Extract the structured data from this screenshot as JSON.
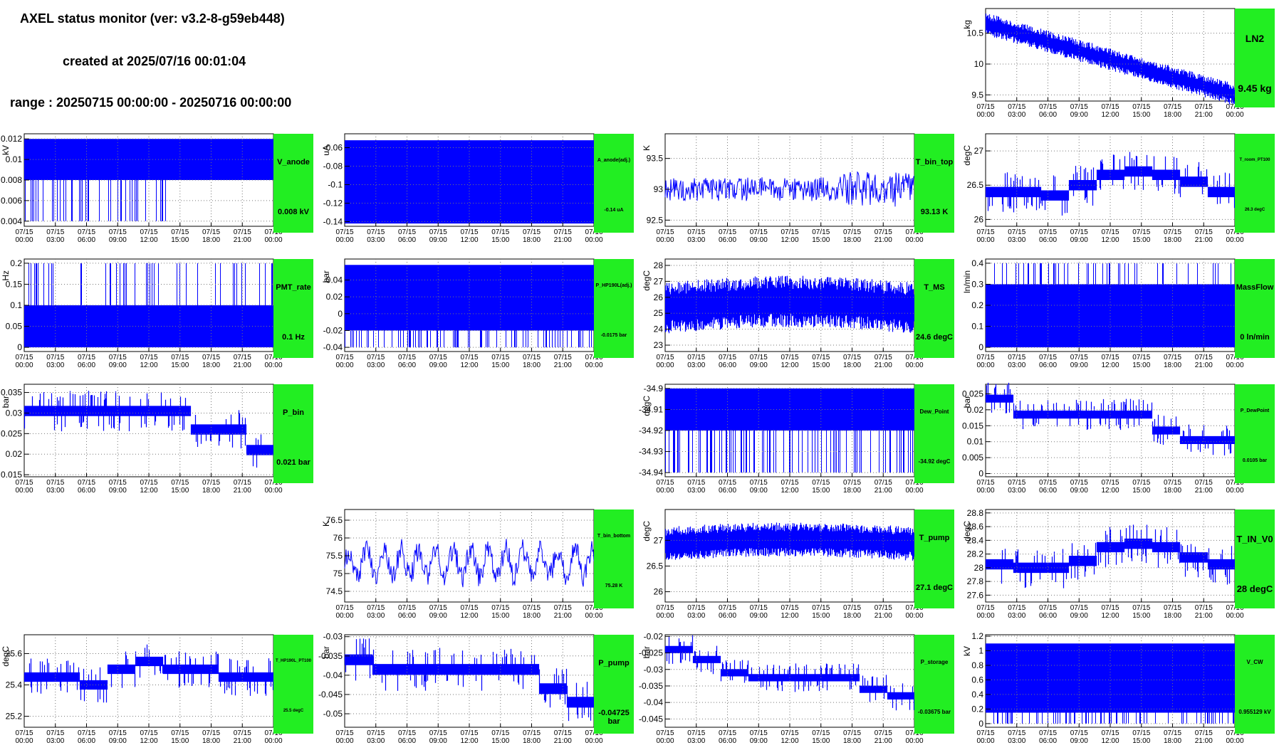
{
  "header": {
    "title": "AXEL status monitor (ver: v3.2-8-g59eb448)",
    "created": "created at 2025/07/16 00:01:04",
    "range": "range : 20250715 00:00:00 - 20250716 00:00:00"
  },
  "colors": {
    "trace": "#0000ff",
    "status_ok": "#22ee22",
    "grid": "#999999"
  },
  "x_ticks": [
    [
      "07/15",
      "00:00"
    ],
    [
      "07/15",
      "03:00"
    ],
    [
      "07/15",
      "06:00"
    ],
    [
      "07/15",
      "09:00"
    ],
    [
      "07/15",
      "12:00"
    ],
    [
      "07/15",
      "15:00"
    ],
    [
      "07/15",
      "18:00"
    ],
    [
      "07/15",
      "21:00"
    ],
    [
      "07/16",
      "00:00"
    ]
  ],
  "chart_data": [
    {
      "id": "LN2",
      "type": "line",
      "name": "LN2",
      "value": "9.45 kg",
      "ylabel": "kg",
      "ylim": [
        9.4,
        10.9
      ],
      "yticks": [
        "9.5",
        "10",
        "10.5"
      ],
      "ytick_values": [
        9.5,
        10,
        10.5
      ],
      "style": "trend",
      "series_start": 10.65,
      "series_end": 9.5,
      "band": 0.18,
      "name_size": 14,
      "value_size": 14
    },
    {
      "id": "V_anode",
      "type": "line",
      "name": "V_anode",
      "value": "0.008 kV",
      "ylabel": "kV",
      "ylim": [
        0.0035,
        0.0125
      ],
      "yticks": [
        "0.004",
        "0.006",
        "0.008",
        "0.01",
        "0.012"
      ],
      "ytick_values": [
        0.004,
        0.006,
        0.008,
        0.01,
        0.012
      ],
      "style": "block",
      "block_low": 0.008,
      "block_high": 0.012,
      "dips_to": 0.004,
      "dip_until": 0.57,
      "name_size": 11,
      "value_size": 11
    },
    {
      "id": "A_anode",
      "type": "line",
      "name": "A_anode(adj.)",
      "value": "-0.14 uA",
      "ylabel": "uA",
      "ylim": [
        -0.145,
        -0.045
      ],
      "yticks": [
        "-0.14",
        "-0.12",
        "-0.1",
        "-0.08",
        "-0.06"
      ],
      "ytick_values": [
        -0.14,
        -0.12,
        -0.1,
        -0.08,
        -0.06
      ],
      "style": "solid",
      "block_low": -0.142,
      "block_high": -0.052,
      "name_size": 7,
      "value_size": 7
    },
    {
      "id": "T_bin_top",
      "type": "line",
      "name": "T_bin_top",
      "value": "93.13 K",
      "ylabel": "K",
      "ylim": [
        92.4,
        93.9
      ],
      "yticks": [
        "92.5",
        "93",
        "93.5"
      ],
      "ytick_values": [
        92.5,
        93,
        93.5
      ],
      "style": "noisy",
      "center": 93.0,
      "amp": 0.3,
      "name_size": 11,
      "value_size": 11
    },
    {
      "id": "T_room",
      "type": "line",
      "name": "T_room_PT100",
      "value": "26.3 degC",
      "ylabel": "degC",
      "ylim": [
        25.9,
        27.25
      ],
      "yticks": [
        "26",
        "26.5",
        "27"
      ],
      "ytick_values": [
        26,
        26.5,
        27
      ],
      "style": "steps",
      "levels": [
        26.4,
        26.4,
        26.35,
        26.5,
        26.65,
        26.7,
        26.65,
        26.55,
        26.4
      ],
      "amp": 0.15,
      "name_size": 6,
      "value_size": 6
    },
    {
      "id": "PMT_rate",
      "type": "line",
      "name": "PMT_rate",
      "value": "0.1 Hz",
      "ylabel": "Hz",
      "ylim": [
        -0.01,
        0.21
      ],
      "yticks": [
        "0",
        "0.05",
        "0.1",
        "0.15",
        "0.2"
      ],
      "ytick_values": [
        0,
        0.05,
        0.1,
        0.15,
        0.2
      ],
      "style": "block",
      "block_low": 0.0,
      "block_high": 0.1,
      "spikes_to": 0.2,
      "name_size": 11,
      "value_size": 11
    },
    {
      "id": "P_HP190L",
      "type": "line",
      "name": "P_HP190L(adj.)",
      "value": "-0.0175 bar",
      "ylabel": "bar",
      "ylim": [
        -0.045,
        0.065
      ],
      "yticks": [
        "-0.04",
        "-0.02",
        "0",
        "0.02",
        "0.04"
      ],
      "ytick_values": [
        -0.04,
        -0.02,
        0,
        0.02,
        0.04
      ],
      "style": "block",
      "block_low": -0.02,
      "block_high": 0.058,
      "dips_to": -0.04,
      "name_size": 7,
      "value_size": 7
    },
    {
      "id": "T_MS",
      "type": "line",
      "name": "T_MS",
      "value": "24.6 degC",
      "ylabel": "degC",
      "ylim": [
        22.6,
        28.4
      ],
      "yticks": [
        "23",
        "24",
        "25",
        "26",
        "27",
        "28"
      ],
      "ytick_values": [
        23,
        24,
        25,
        26,
        27,
        28
      ],
      "style": "dense",
      "center": 25.4,
      "amp": 1.7,
      "name_size": 11,
      "value_size": 11
    },
    {
      "id": "MassFlow",
      "type": "line",
      "name": "MassFlow",
      "value": "0 ln/min",
      "ylabel": "ln/min",
      "ylim": [
        -0.02,
        0.42
      ],
      "yticks": [
        "0",
        "0.1",
        "0.2",
        "0.3",
        "0.4"
      ],
      "ytick_values": [
        0,
        0.1,
        0.2,
        0.3,
        0.4
      ],
      "style": "block",
      "block_low": 0.0,
      "block_high": 0.3,
      "spikes_to": 0.4,
      "name_size": 11,
      "value_size": 11
    },
    {
      "id": "P_bin",
      "type": "line",
      "name": "P_bin",
      "value": "0.021 bar",
      "ylabel": "bar",
      "ylim": [
        0.0145,
        0.037
      ],
      "yticks": [
        "0.015",
        "0.02",
        "0.025",
        "0.03",
        "0.035"
      ],
      "ytick_values": [
        0.015,
        0.02,
        0.025,
        0.03,
        0.035
      ],
      "style": "stepdown",
      "levels": [
        0.0305,
        0.0305,
        0.0305,
        0.0305,
        0.0305,
        0.0305,
        0.026,
        0.026,
        0.021
      ],
      "amp": 0.0025,
      "name_size": 11,
      "value_size": 11
    },
    {
      "id": "Dew_Point",
      "type": "line",
      "name": "Dew_Point",
      "value": "-34.92 degC",
      "ylabel": "degC",
      "ylim": [
        -34.942,
        -34.898
      ],
      "yticks": [
        "-34.94",
        "-34.93",
        "-34.92",
        "-34.91",
        "-34.9"
      ],
      "ytick_values": [
        -34.94,
        -34.93,
        -34.92,
        -34.91,
        -34.9
      ],
      "style": "block",
      "block_low": -34.92,
      "block_high": -34.9,
      "dips_to": -34.94,
      "name_size": 8,
      "value_size": 8
    },
    {
      "id": "P_DewPoint",
      "type": "line",
      "name": "P_DewPoint",
      "value": "0.0105 bar",
      "ylabel": "bar",
      "ylim": [
        -0.001,
        0.028
      ],
      "yticks": [
        "0",
        "0.005",
        "0.01",
        "0.015",
        "0.02",
        "0.025"
      ],
      "ytick_values": [
        0,
        0.005,
        0.01,
        0.015,
        0.02,
        0.025
      ],
      "style": "stepdown",
      "levels": [
        0.0235,
        0.0185,
        0.0185,
        0.0185,
        0.0185,
        0.0185,
        0.0135,
        0.0105,
        0.0105
      ],
      "amp": 0.0025,
      "name_size": 7,
      "value_size": 7
    },
    {
      "id": "T_bin_bottom",
      "type": "line",
      "name": "T_bin_bottom",
      "value": "75.28 K",
      "ylabel": "K",
      "ylim": [
        74.2,
        76.8
      ],
      "yticks": [
        "74.5",
        "75",
        "75.5",
        "76",
        "76.5"
      ],
      "ytick_values": [
        74.5,
        75,
        75.5,
        76,
        76.5
      ],
      "style": "oscillate",
      "center": 75.3,
      "amp": 0.7,
      "name_size": 7,
      "value_size": 7
    },
    {
      "id": "T_pump",
      "type": "line",
      "name": "T_pump",
      "value": "27.1 degC",
      "ylabel": "degC",
      "ylim": [
        25.8,
        27.6
      ],
      "yticks": [
        "26",
        "26.5",
        "27"
      ],
      "ytick_values": [
        26,
        26.5,
        27
      ],
      "style": "dense",
      "center": 26.95,
      "amp": 0.35,
      "name_size": 11,
      "value_size": 11
    },
    {
      "id": "T_IN_V0",
      "type": "line",
      "name": "T_IN_V0",
      "value": "28 degC",
      "ylabel": "degC",
      "ylim": [
        27.5,
        28.85
      ],
      "yticks": [
        "27.6",
        "27.8",
        "28",
        "28.2",
        "28.4",
        "28.6",
        "28.8"
      ],
      "ytick_values": [
        27.6,
        27.8,
        28,
        28.2,
        28.4,
        28.6,
        28.8
      ],
      "style": "steps",
      "levels": [
        28.05,
        28.0,
        28.0,
        28.1,
        28.3,
        28.35,
        28.3,
        28.15,
        28.05
      ],
      "amp": 0.15,
      "name_size": 13,
      "value_size": 13
    },
    {
      "id": "T_HP190L",
      "type": "line",
      "name": "T_HP190L_PT100",
      "value": "25.5 degC",
      "ylabel": "degC",
      "ylim": [
        25.13,
        25.72
      ],
      "yticks": [
        "25.2",
        "25.4",
        "25.6"
      ],
      "ytick_values": [
        25.2,
        25.4,
        25.6
      ],
      "style": "steps",
      "levels": [
        25.45,
        25.45,
        25.4,
        25.5,
        25.55,
        25.5,
        25.5,
        25.45,
        25.45
      ],
      "amp": 0.06,
      "name_size": 6,
      "value_size": 6
    },
    {
      "id": "P_pump",
      "type": "line",
      "name": "P_pump",
      "value": "-0.04725 bar",
      "ylabel": "bar",
      "ylim": [
        -0.0535,
        -0.0295
      ],
      "yticks": [
        "-0.05",
        "-0.045",
        "-0.04",
        "-0.035",
        "-0.03"
      ],
      "ytick_values": [
        -0.05,
        -0.045,
        -0.04,
        -0.035,
        -0.03
      ],
      "style": "stepdown",
      "levels": [
        -0.036,
        -0.0385,
        -0.0385,
        -0.0385,
        -0.0385,
        -0.0385,
        -0.0385,
        -0.0435,
        -0.047
      ],
      "amp": 0.0028,
      "name_size": 11,
      "value_size": 11
    },
    {
      "id": "P_storage",
      "type": "line",
      "name": "P_storage",
      "value": "-0.03675 bar",
      "ylabel": "bar",
      "ylim": [
        -0.0475,
        -0.0195
      ],
      "yticks": [
        "-0.045",
        "-0.04",
        "-0.035",
        "-0.03",
        "-0.025",
        "-0.02"
      ],
      "ytick_values": [
        -0.045,
        -0.04,
        -0.035,
        -0.03,
        -0.025,
        -0.02
      ],
      "style": "stepdown",
      "levels": [
        -0.024,
        -0.027,
        -0.031,
        -0.0325,
        -0.0325,
        -0.0325,
        -0.0325,
        -0.036,
        -0.038
      ],
      "amp": 0.0022,
      "name_size": 8,
      "value_size": 8
    },
    {
      "id": "V_CW",
      "type": "line",
      "name": "V_CW",
      "value": "0.955129 kV",
      "ylabel": "kV",
      "ylim": [
        -0.05,
        1.22
      ],
      "yticks": [
        "0",
        "0.2",
        "0.4",
        "0.6",
        "0.8",
        "1",
        "1.2"
      ],
      "ytick_values": [
        0,
        0.2,
        0.4,
        0.6,
        0.8,
        1,
        1.2
      ],
      "style": "block",
      "block_low": 0.15,
      "block_high": 1.1,
      "dips_to": 0.0,
      "name_size": 8,
      "value_size": 8
    }
  ]
}
